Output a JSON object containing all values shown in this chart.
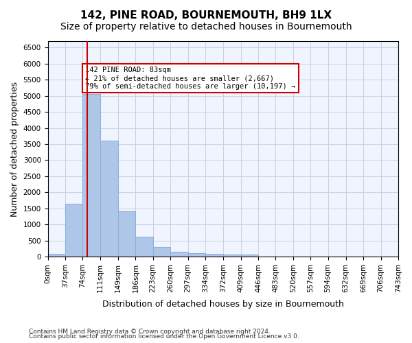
{
  "title": "142, PINE ROAD, BOURNEMOUTH, BH9 1LX",
  "subtitle": "Size of property relative to detached houses in Bournemouth",
  "xlabel": "Distribution of detached houses by size in Bournemouth",
  "ylabel": "Number of detached properties",
  "bin_edges": [
    0,
    37,
    74,
    111,
    149,
    186,
    223,
    260,
    297,
    334,
    372,
    409,
    446,
    483,
    520,
    557,
    594,
    632,
    669,
    706,
    743
  ],
  "bin_labels": [
    "0sqm",
    "37sqm",
    "74sqm",
    "111sqm",
    "149sqm",
    "186sqm",
    "223sqm",
    "260sqm",
    "297sqm",
    "334sqm",
    "372sqm",
    "409sqm",
    "446sqm",
    "483sqm",
    "520sqm",
    "557sqm",
    "594sqm",
    "632sqm",
    "669sqm",
    "706sqm",
    "743sqm"
  ],
  "bar_heights": [
    80,
    1650,
    5060,
    3600,
    1410,
    620,
    295,
    155,
    110,
    80,
    60,
    60,
    0,
    0,
    0,
    0,
    0,
    0,
    0,
    0
  ],
  "bar_color": "#aec6e8",
  "bar_edgecolor": "#aec6e8",
  "vline_x": 83,
  "vline_color": "#cc0000",
  "annotation_text": "142 PINE ROAD: 83sqm\n← 21% of detached houses are smaller (2,667)\n79% of semi-detached houses are larger (10,197) →",
  "annotation_box_color": "#ffffff",
  "annotation_box_edgecolor": "#cc0000",
  "ylim": [
    0,
    6700
  ],
  "yticks": [
    0,
    500,
    1000,
    1500,
    2000,
    2500,
    3000,
    3500,
    4000,
    4500,
    5000,
    5500,
    6000,
    6500
  ],
  "grid_color": "#c8d0e0",
  "background_color": "#f0f4ff",
  "footer_line1": "Contains HM Land Registry data © Crown copyright and database right 2024.",
  "footer_line2": "Contains public sector information licensed under the Open Government Licence v3.0.",
  "title_fontsize": 11,
  "subtitle_fontsize": 10,
  "tick_fontsize": 7.5,
  "ylabel_fontsize": 9,
  "xlabel_fontsize": 9
}
